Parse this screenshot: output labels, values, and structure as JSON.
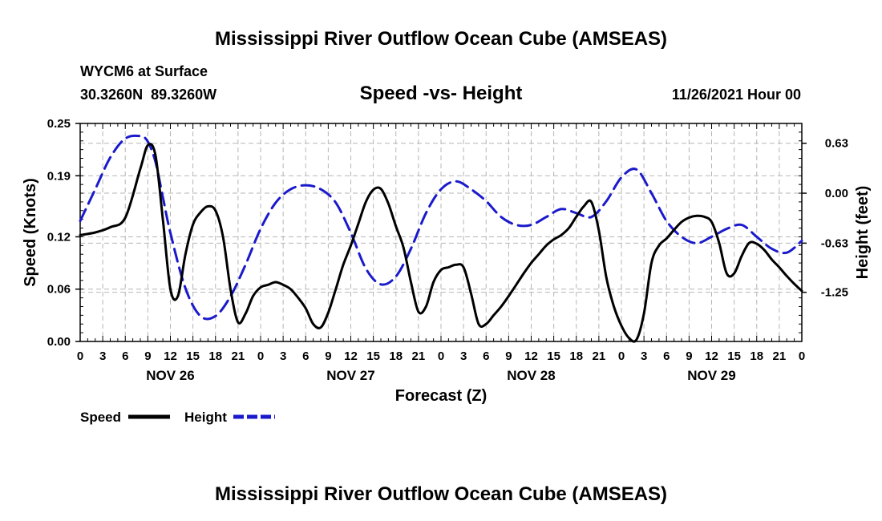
{
  "chart_data": {
    "type": "line",
    "title": "Mississippi River Outflow Ocean Cube (AMSEAS)",
    "subtitle": "Speed -vs- Height",
    "station": "WYCM6 at Surface",
    "coordinates": "30.3260N  89.3260W",
    "date_label": "11/26/2021 Hour 00",
    "xlabel": "Forecast (Z)",
    "ylabel_left": "Speed (Knots)",
    "ylabel_right": "Height (feet)",
    "x_range_hours": [
      0,
      96
    ],
    "x_tick_labels": [
      "0",
      "3",
      "6",
      "9",
      "12",
      "15",
      "18",
      "21",
      "0",
      "3",
      "6",
      "9",
      "12",
      "15",
      "18",
      "21",
      "0",
      "3",
      "6",
      "9",
      "12",
      "15",
      "18",
      "21",
      "0",
      "3",
      "6",
      "9",
      "12",
      "15",
      "18",
      "21",
      "0"
    ],
    "day_labels": [
      "NOV 26",
      "NOV 27",
      "NOV 28",
      "NOV 29"
    ],
    "day_label_hours": [
      12,
      36,
      60,
      84
    ],
    "left_axis": {
      "range": [
        0,
        0.25
      ],
      "ticks": [
        0,
        0.06,
        0.12,
        0.19,
        0.25
      ],
      "tick_labels": [
        "0.00",
        "0.06",
        "0.12",
        "0.19",
        "0.25"
      ]
    },
    "right_axis": {
      "range": [
        -1.87,
        0.88
      ],
      "ticks": [
        -1.25,
        -0.63,
        0.0,
        0.63
      ],
      "tick_labels": [
        "-1.25",
        "-0.63",
        "0.00",
        "0.63"
      ]
    },
    "grid": true,
    "series": [
      {
        "name": "Speed",
        "axis": "left",
        "color": "#000000",
        "style": "solid",
        "x": [
          0,
          2,
          4,
          6,
          8,
          9,
          10,
          11,
          12,
          13,
          14,
          15,
          16,
          17,
          18,
          19,
          20,
          21,
          22,
          23,
          24,
          25,
          26,
          27,
          28,
          29,
          30,
          31,
          32,
          33,
          34,
          35,
          36,
          37,
          38,
          39,
          40,
          41,
          42,
          43,
          44,
          45,
          46,
          47,
          48,
          49,
          50,
          51,
          52,
          53,
          54,
          55,
          56,
          57,
          58,
          59,
          60,
          61,
          62,
          63,
          64,
          65,
          66,
          67,
          68,
          69,
          70,
          71,
          72,
          73,
          74,
          75,
          76,
          77,
          78,
          79,
          80,
          81,
          82,
          83,
          84,
          85,
          86,
          87,
          88,
          89,
          90,
          91,
          92,
          93,
          94,
          95,
          96
        ],
        "values": [
          0.122,
          0.125,
          0.131,
          0.142,
          0.198,
          0.225,
          0.214,
          0.14,
          0.06,
          0.052,
          0.1,
          0.134,
          0.148,
          0.155,
          0.15,
          0.12,
          0.06,
          0.022,
          0.032,
          0.052,
          0.062,
          0.065,
          0.068,
          0.065,
          0.06,
          0.05,
          0.038,
          0.02,
          0.016,
          0.033,
          0.06,
          0.088,
          0.11,
          0.135,
          0.16,
          0.174,
          0.175,
          0.158,
          0.132,
          0.108,
          0.068,
          0.034,
          0.04,
          0.068,
          0.082,
          0.085,
          0.088,
          0.085,
          0.055,
          0.02,
          0.02,
          0.03,
          0.04,
          0.052,
          0.065,
          0.078,
          0.09,
          0.1,
          0.11,
          0.117,
          0.122,
          0.13,
          0.143,
          0.155,
          0.16,
          0.127,
          0.073,
          0.04,
          0.018,
          0.004,
          0.002,
          0.032,
          0.09,
          0.11,
          0.118,
          0.128,
          0.137,
          0.142,
          0.144,
          0.143,
          0.137,
          0.113,
          0.078,
          0.078,
          0.098,
          0.113,
          0.112,
          0.105,
          0.094,
          0.085,
          0.075,
          0.066,
          0.058
        ]
      },
      {
        "name": "Height",
        "axis": "right",
        "color": "#1a1acc",
        "style": "dashed",
        "x": [
          0,
          2,
          4,
          6,
          8,
          9,
          10,
          11,
          12,
          14,
          16,
          18,
          20,
          22,
          24,
          26,
          28,
          30,
          32,
          34,
          36,
          38,
          40,
          42,
          44,
          46,
          48,
          50,
          52,
          54,
          56,
          58,
          60,
          62,
          64,
          66,
          68,
          70,
          72,
          74,
          76,
          78,
          80,
          82,
          84,
          86,
          88,
          90,
          92,
          94,
          96
        ],
        "values": [
          -0.35,
          0.05,
          0.45,
          0.69,
          0.72,
          0.65,
          0.4,
          -0.05,
          -0.5,
          -1.2,
          -1.55,
          -1.55,
          -1.3,
          -0.9,
          -0.45,
          -0.12,
          0.05,
          0.1,
          0.05,
          -0.12,
          -0.5,
          -0.95,
          -1.15,
          -1.05,
          -0.7,
          -0.25,
          0.05,
          0.15,
          0.05,
          -0.1,
          -0.3,
          -0.4,
          -0.4,
          -0.3,
          -0.2,
          -0.25,
          -0.3,
          -0.1,
          0.2,
          0.3,
          0.0,
          -0.35,
          -0.55,
          -0.63,
          -0.55,
          -0.45,
          -0.4,
          -0.55,
          -0.7,
          -0.75,
          -0.6
        ]
      }
    ]
  },
  "legend": {
    "items": [
      {
        "label": "Speed",
        "color": "#000000",
        "style": "solid"
      },
      {
        "label": "Height",
        "color": "#1a1acc",
        "style": "dashed"
      }
    ]
  },
  "footer_title": "Mississippi River Outflow Ocean Cube (AMSEAS)"
}
